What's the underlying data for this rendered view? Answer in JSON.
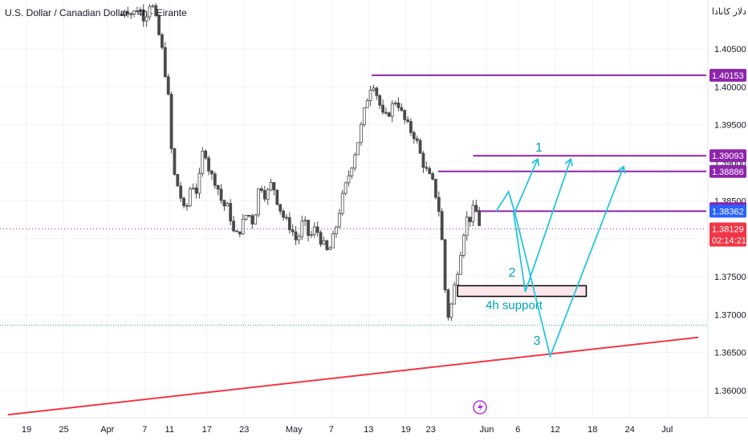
{
  "title": "U.S. Dollar / Canadian Dollar · 4h · Eirante",
  "currency_label": "دلار کانادا",
  "colors": {
    "candle": "#4a4a4a",
    "purple": "#8e24aa",
    "red": "#f23645",
    "cyan": "#26c6da",
    "teal_text": "#00a3b4",
    "last_price_bg": "#f23645",
    "current_bg": "#2962ff",
    "grid": "#f0f3fa",
    "dotted_purple": "#9c27b0",
    "dotted_teal": "#26a69a"
  },
  "chart_data": {
    "type": "candlestick",
    "symbol": "USDCAD",
    "timeframe": "4h",
    "y_ticks": [
      1.36,
      1.365,
      1.37,
      1.375,
      1.38,
      1.385,
      1.39,
      1.395,
      1.4,
      1.405
    ],
    "y_tick_labels": [
      "1.36000",
      "1.36500",
      "1.37000",
      "1.37500",
      "1.38000",
      "1.38500",
      "1.39000",
      "1.39500",
      "1.40000",
      "1.40500"
    ],
    "x_ticks": [
      {
        "label": "19",
        "t": 0
      },
      {
        "label": "25",
        "t": 6
      },
      {
        "label": "Apr",
        "t": 13
      },
      {
        "label": "7",
        "t": 19
      },
      {
        "label": "11",
        "t": 23
      },
      {
        "label": "17",
        "t": 29
      },
      {
        "label": "23",
        "t": 35
      },
      {
        "label": "May",
        "t": 43
      },
      {
        "label": "7",
        "t": 49
      },
      {
        "label": "13",
        "t": 55
      },
      {
        "label": "19",
        "t": 61
      },
      {
        "label": "23",
        "t": 65
      },
      {
        "label": "Jun",
        "t": 74
      },
      {
        "label": "6",
        "t": 79
      },
      {
        "label": "12",
        "t": 85
      },
      {
        "label": "18",
        "t": 91
      },
      {
        "label": "24",
        "t": 97
      },
      {
        "label": "Jul",
        "t": 103
      }
    ],
    "price_path": [
      {
        "t": 15.3,
        "p": 1.4095
      },
      {
        "t": 16.0,
        "p": 1.4105
      },
      {
        "t": 17.0,
        "p": 1.4095
      },
      {
        "t": 18.0,
        "p": 1.4105
      },
      {
        "t": 19.0,
        "p": 1.409
      },
      {
        "t": 20.0,
        "p": 1.4115
      },
      {
        "t": 21.0,
        "p": 1.408
      },
      {
        "t": 22.0,
        "p": 1.404
      },
      {
        "t": 22.8,
        "p": 1.3985
      },
      {
        "t": 23.5,
        "p": 1.389
      },
      {
        "t": 24.5,
        "p": 1.3865
      },
      {
        "t": 25.5,
        "p": 1.383
      },
      {
        "t": 26.5,
        "p": 1.3875
      },
      {
        "t": 27.5,
        "p": 1.386
      },
      {
        "t": 28.5,
        "p": 1.3925
      },
      {
        "t": 29.5,
        "p": 1.3885
      },
      {
        "t": 30.5,
        "p": 1.3875
      },
      {
        "t": 31.5,
        "p": 1.3845
      },
      {
        "t": 32.5,
        "p": 1.384
      },
      {
        "t": 33.5,
        "p": 1.38
      },
      {
        "t": 34.5,
        "p": 1.3815
      },
      {
        "t": 35.5,
        "p": 1.3835
      },
      {
        "t": 36.5,
        "p": 1.382
      },
      {
        "t": 37.5,
        "p": 1.3875
      },
      {
        "t": 38.5,
        "p": 1.3855
      },
      {
        "t": 39.5,
        "p": 1.3875
      },
      {
        "t": 40.5,
        "p": 1.3845
      },
      {
        "t": 41.5,
        "p": 1.3825
      },
      {
        "t": 42.5,
        "p": 1.3815
      },
      {
        "t": 43.5,
        "p": 1.3795
      },
      {
        "t": 44.5,
        "p": 1.3825
      },
      {
        "t": 45.5,
        "p": 1.38
      },
      {
        "t": 46.5,
        "p": 1.3815
      },
      {
        "t": 47.5,
        "p": 1.3795
      },
      {
        "t": 48.5,
        "p": 1.378
      },
      {
        "t": 49.5,
        "p": 1.3805
      },
      {
        "t": 50.5,
        "p": 1.3845
      },
      {
        "t": 51.5,
        "p": 1.3875
      },
      {
        "t": 52.5,
        "p": 1.3905
      },
      {
        "t": 53.5,
        "p": 1.3935
      },
      {
        "t": 54.5,
        "p": 1.3975
      },
      {
        "t": 55.2,
        "p": 1.4
      },
      {
        "t": 55.8,
        "p": 1.4005
      },
      {
        "t": 56.5,
        "p": 1.3985
      },
      {
        "t": 57.5,
        "p": 1.3955
      },
      {
        "t": 58.5,
        "p": 1.397
      },
      {
        "t": 59.5,
        "p": 1.3985
      },
      {
        "t": 60.5,
        "p": 1.396
      },
      {
        "t": 61.5,
        "p": 1.3945
      },
      {
        "t": 62.5,
        "p": 1.3935
      },
      {
        "t": 63.5,
        "p": 1.3905
      },
      {
        "t": 64.5,
        "p": 1.3885
      },
      {
        "t": 65.5,
        "p": 1.387
      },
      {
        "t": 66.5,
        "p": 1.383
      },
      {
        "t": 67.0,
        "p": 1.3775
      },
      {
        "t": 67.5,
        "p": 1.3705
      },
      {
        "t": 68.0,
        "p": 1.3695
      },
      {
        "t": 68.5,
        "p": 1.3725
      },
      {
        "t": 69.0,
        "p": 1.3745
      },
      {
        "t": 69.5,
        "p": 1.377
      },
      {
        "t": 70.0,
        "p": 1.3795
      },
      {
        "t": 70.5,
        "p": 1.382
      },
      {
        "t": 71.0,
        "p": 1.383
      },
      {
        "t": 71.5,
        "p": 1.3825
      },
      {
        "t": 72.0,
        "p": 1.3845
      },
      {
        "t": 72.5,
        "p": 1.383
      },
      {
        "t": 73.0,
        "p": 1.3813
      }
    ],
    "levels": [
      {
        "label": "1.40153",
        "value": 1.40153,
        "t_start": 55.5,
        "color": "#8e24aa"
      },
      {
        "label": "1.39093",
        "value": 1.39093,
        "t_start": 71.8,
        "color": "#8e24aa"
      },
      {
        "label": "1.38886",
        "value": 1.38886,
        "t_start": 66.2,
        "color": "#8e24aa"
      },
      {
        "label": "1.38395",
        "value": 1.38395,
        "t_start": null,
        "color": "#8e24aa"
      },
      {
        "label": "1.38362",
        "value": 1.38362,
        "t_start": 72.0,
        "color": "#8e24aa"
      }
    ],
    "last_price": {
      "label": "1.38129",
      "countdown": "02:14:21",
      "value": 1.38129
    },
    "support_zone": {
      "label": "4h support",
      "top": 1.3738,
      "bottom": 1.3724,
      "t_start": 69.3,
      "t_end": 90.0
    },
    "trendline": {
      "t1": -3,
      "p1": 1.3568,
      "t2": 108,
      "p2": 1.367
    },
    "teal_dotted_level": 1.3686,
    "scenarios": [
      {
        "label": "1",
        "label_at": {
          "t": 81.8,
          "p": 1.3915
        },
        "path": [
          {
            "t": 75.5,
            "p": 1.3836
          },
          {
            "t": 77.5,
            "p": 1.3862
          },
          {
            "t": 78.5,
            "p": 1.3835
          },
          {
            "t": 82.2,
            "p": 1.3905
          }
        ]
      },
      {
        "label": "2",
        "label_at": {
          "t": 77.5,
          "p": 1.375
        },
        "path": [
          {
            "t": 78.3,
            "p": 1.3835
          },
          {
            "t": 80.2,
            "p": 1.373
          },
          {
            "t": 87.5,
            "p": 1.3905
          }
        ]
      },
      {
        "label": "3",
        "label_at": {
          "t": 81.5,
          "p": 1.366
        },
        "path": [
          {
            "t": 78.5,
            "p": 1.3835
          },
          {
            "t": 84.2,
            "p": 1.3645
          },
          {
            "t": 96.0,
            "p": 1.3895
          }
        ]
      }
    ]
  }
}
